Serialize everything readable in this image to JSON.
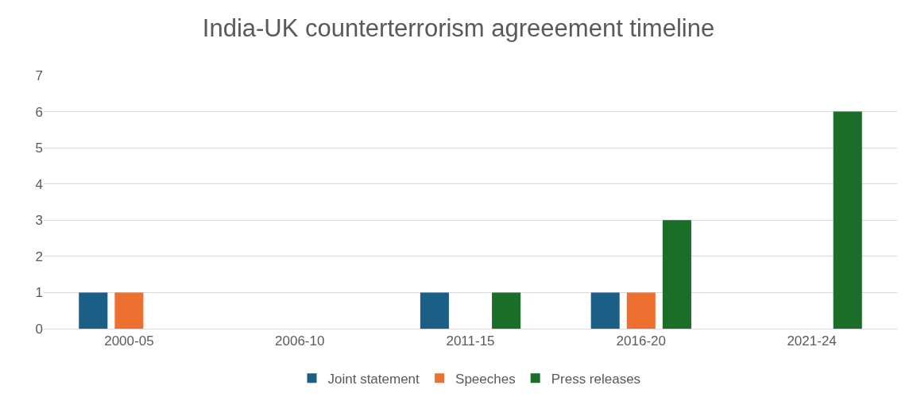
{
  "chart_data": {
    "type": "bar",
    "title": "India-UK counterterrorism agreeement timeline",
    "categories": [
      "2000-05",
      "2006-10",
      "2011-15",
      "2016-20",
      "2021-24"
    ],
    "series": [
      {
        "name": "Joint statement",
        "color": "#1b5f86",
        "values": [
          1,
          0,
          1,
          1,
          0
        ]
      },
      {
        "name": "Speeches",
        "color": "#ed7031",
        "values": [
          1,
          0,
          0,
          1,
          0
        ]
      },
      {
        "name": "Press releases",
        "color": "#1a6e28",
        "values": [
          0,
          0,
          1,
          3,
          6
        ]
      }
    ],
    "ylim": [
      0,
      7
    ],
    "yticks": [
      0,
      1,
      2,
      3,
      4,
      5,
      6,
      7
    ],
    "grid": "y",
    "legend": "bottom"
  }
}
